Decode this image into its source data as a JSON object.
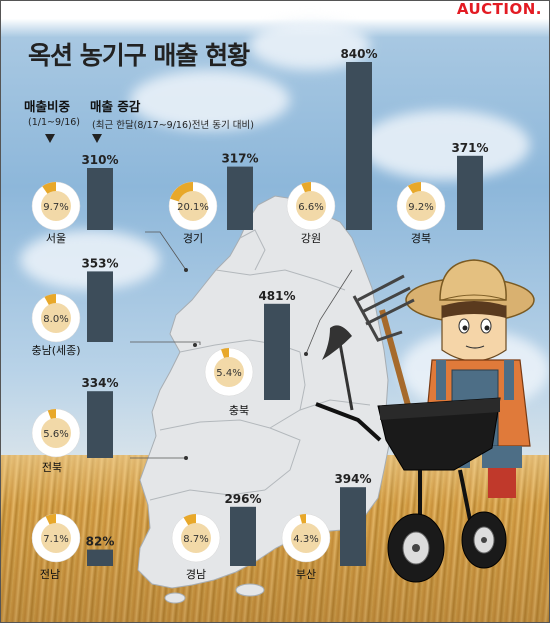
{
  "brand": "AUCTION.",
  "title": "옥션 농기구 매출 현황",
  "legend": {
    "share_label": "매출비중",
    "share_period": "(1/1~9/16)",
    "growth_label": "매출 증감",
    "growth_period": "(최근 한달(8/17~9/16)전년 동기 대비)"
  },
  "colors": {
    "bar": "#3d4d5a",
    "donut_share": "#e8a82a",
    "donut_rest": "#ffffff",
    "donut_center": "#f2d9a8"
  },
  "chart_data": {
    "type": "bar",
    "title": "옥션 농기구 매출 현황",
    "categories": [
      "서울",
      "경기",
      "강원",
      "경북",
      "충남(세종)",
      "충북",
      "전북",
      "전남",
      "경남",
      "부산"
    ],
    "series": [
      {
        "name": "매출비중",
        "values": [
          9.7,
          20.1,
          6.6,
          9.2,
          8.0,
          5.4,
          5.6,
          7.1,
          8.7,
          4.3
        ],
        "labels": [
          "9.7%",
          "20.1%",
          "6.6%",
          "9.2%",
          "8.0%",
          "5.4%",
          "5.6%",
          "7.1%",
          "8.7%",
          "4.3%"
        ]
      },
      {
        "name": "매출 증감",
        "values": [
          310,
          317,
          840,
          371,
          353,
          481,
          334,
          82,
          296,
          394
        ],
        "labels": [
          "310%",
          "317%",
          "840%",
          "371%",
          "353%",
          "481%",
          "334%",
          "82%",
          "296%",
          "394%"
        ]
      }
    ]
  }
}
